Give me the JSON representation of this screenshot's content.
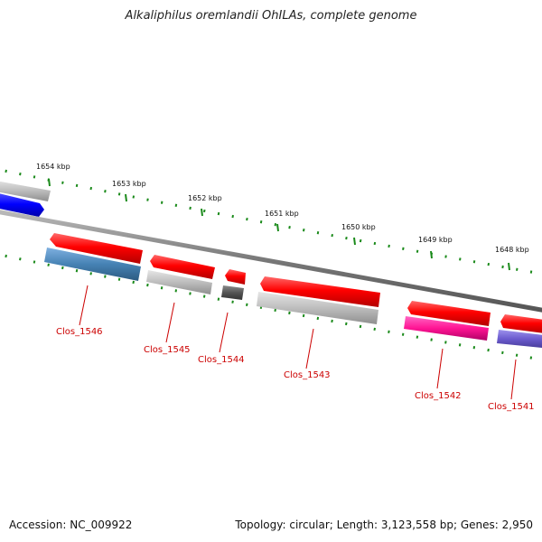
{
  "title": "Alkaliphilus oremlandii OhILAs, complete genome",
  "footer": {
    "accession": "Accession: NC_009922",
    "summary": "Topology: circular; Length: 3,123,558 bp; Genes: 2,950"
  },
  "ticks": [
    "1654 kbp",
    "1653 kbp",
    "1652 kbp",
    "1651 kbp",
    "1650 kbp",
    "1649 kbp",
    "1648 kbp"
  ],
  "genes": [
    {
      "id": "Clos_1546",
      "label": "Clos_1546",
      "color": "#ff0000"
    },
    {
      "id": "Clos_1545",
      "label": "Clos_1545",
      "color": "#ff0000"
    },
    {
      "id": "Clos_1544",
      "label": "Clos_1544",
      "color": "#ff0000"
    },
    {
      "id": "Clos_1543",
      "label": "Clos_1543",
      "color": "#ff0000"
    },
    {
      "id": "Clos_1542",
      "label": "Clos_1542",
      "color": "#ff0000"
    },
    {
      "id": "Clos_1541",
      "label": "Clos_1541",
      "color": "#ff0000"
    }
  ],
  "label_color": "#cc0000",
  "tick_color": "#1a8a1a",
  "backbone_color": "#777777"
}
